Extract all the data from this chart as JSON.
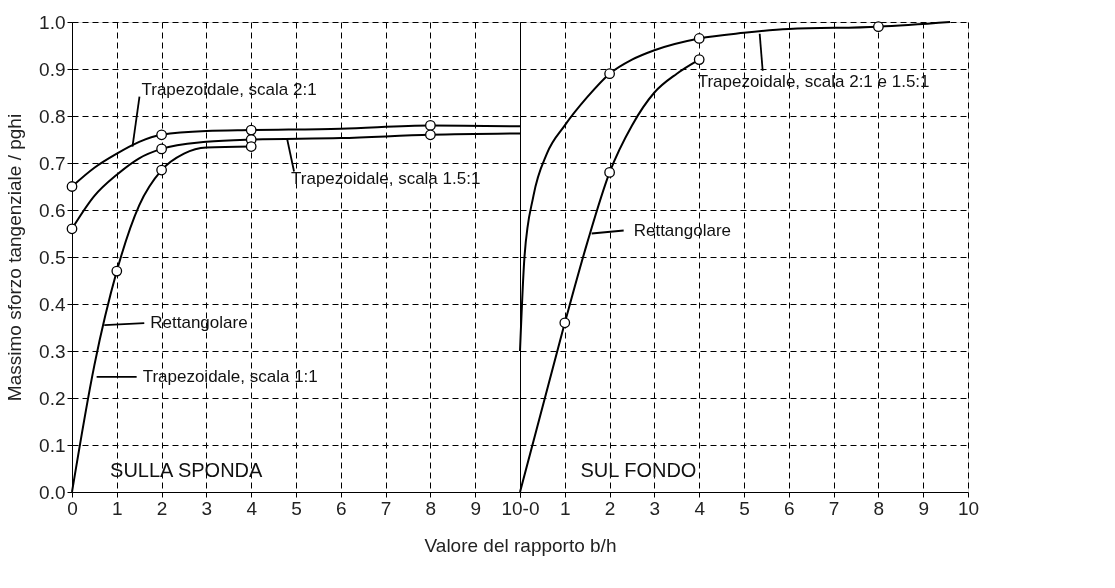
{
  "chart_data": [
    {
      "type": "line",
      "xlabel": "Valore del rapporto b/h",
      "ylabel": "Massimo sforzo tangenziale / pghi",
      "xlim": [
        0,
        10
      ],
      "ylim": [
        0,
        1
      ],
      "xticks": [
        0,
        1,
        2,
        3,
        4,
        5,
        6,
        7,
        8,
        9,
        {
          "value": 10,
          "label": "10-0"
        }
      ],
      "yticks": [
        {
          "value": 0,
          "label": "0.0"
        },
        0.1,
        0.2,
        0.3,
        0.4,
        0.5,
        0.6,
        0.7,
        0.8,
        0.9,
        {
          "value": 1,
          "label": "1.0"
        }
      ],
      "grid": true,
      "line_style": "solid",
      "marker": "none",
      "series": [
        {
          "color": "#000000",
          "x": [
            0,
            0.5,
            1,
            1.5,
            2,
            3,
            4,
            6,
            8,
            10
          ],
          "values": [
            0.65,
            0.69,
            0.72,
            0.745,
            0.76,
            0.768,
            0.77,
            0.773,
            0.78,
            0.778
          ]
        },
        {
          "color": "#000000",
          "x": [
            0,
            0.5,
            1,
            1.5,
            2,
            3,
            4,
            6,
            8,
            10
          ],
          "values": [
            0.56,
            0.63,
            0.675,
            0.71,
            0.73,
            0.745,
            0.75,
            0.753,
            0.76,
            0.763
          ]
        },
        {
          "color": "#000000",
          "x": [
            0,
            0.5,
            1,
            1.5,
            2,
            2.5,
            3,
            4
          ],
          "values": [
            0,
            0.27,
            0.47,
            0.61,
            0.685,
            0.72,
            0.733,
            0.735
          ]
        },
        {
          "type": "scatter",
          "marker": "circle",
          "color": "#000000",
          "x": [
            0,
            2,
            4,
            8,
            0,
            2,
            4,
            8,
            1,
            2,
            4
          ],
          "values": [
            0.65,
            0.76,
            0.77,
            0.78,
            0.56,
            0.73,
            0.75,
            0.76,
            0.47,
            0.685,
            0.735
          ]
        }
      ],
      "annotations": [
        {
          "text": "Trapezoidale, scala 2:1",
          "x": 1.35,
          "y": 0.735
        },
        {
          "text": "Trapezoidale, scala 1.5:1",
          "x": 4.8,
          "y": 0.752
        },
        {
          "text": "Rettangolare",
          "x": 0.72,
          "y": 0.355
        },
        {
          "text": "Trapezoidale, scala 1:1",
          "x": 0.55,
          "y": 0.245
        },
        "SULLA SPONDA"
      ]
    },
    {
      "type": "line",
      "xlim": [
        0,
        10
      ],
      "ylim": [
        0,
        1
      ],
      "xticks": [
        {
          "value": 0,
          "label": null
        },
        1,
        2,
        3,
        4,
        5,
        6,
        7,
        8,
        9,
        10
      ],
      "yticks": [
        0,
        0.1,
        0.2,
        0.3,
        0.4,
        0.5,
        0.6,
        0.7,
        0.8,
        0.9,
        1
      ],
      "tick_labels": "x",
      "grid": true,
      "line_style": "solid",
      "marker": "none",
      "series": [
        {
          "color": "#000000",
          "x": [
            0,
            0.1,
            0.3,
            0.6,
            1,
            1.5,
            2,
            2.5,
            3,
            4,
            5,
            6,
            8,
            9.6
          ],
          "values": [
            0.3,
            0.5,
            0.63,
            0.72,
            0.78,
            0.84,
            0.89,
            0.92,
            0.94,
            0.965,
            0.977,
            0.985,
            0.99,
            1.0
          ]
        },
        {
          "color": "#000000",
          "x": [
            0,
            1,
            1.5,
            2,
            2.5,
            3,
            3.5,
            4
          ],
          "values": [
            0,
            0.36,
            0.53,
            0.68,
            0.78,
            0.85,
            0.89,
            0.92
          ]
        },
        {
          "type": "scatter",
          "marker": "circle",
          "color": "#000000",
          "x": [
            2,
            4,
            8,
            1,
            2,
            4
          ],
          "values": [
            0.89,
            0.965,
            0.99,
            0.36,
            0.68,
            0.92
          ]
        }
      ],
      "annotations": [
        {
          "text": "Trapezoidale, scala 2:1 e 1.5:1",
          "x": 5.35,
          "y": 0.975
        },
        {
          "text": "Rettangolare",
          "x": 1.6,
          "y": 0.55
        },
        "SUL FONDO"
      ]
    }
  ]
}
